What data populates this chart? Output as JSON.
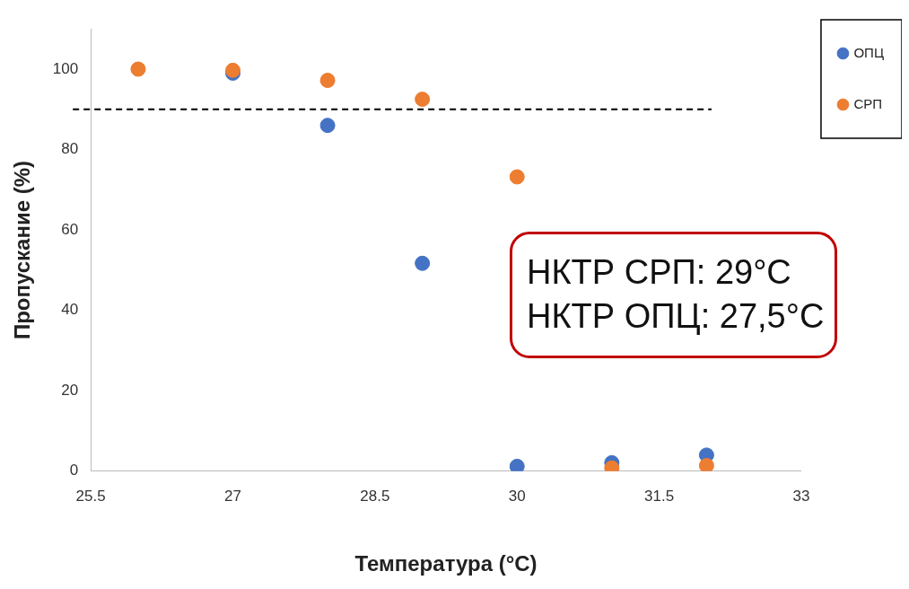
{
  "chart_data": {
    "type": "scatter",
    "xlabel": "Температура (°C)",
    "ylabel": "Пропускание (%)",
    "xlim": [
      25.5,
      33
    ],
    "xticks": [
      25.5,
      27,
      28.5,
      30,
      31.5,
      33
    ],
    "ylim": [
      0,
      110
    ],
    "yticks": [
      0,
      20,
      40,
      60,
      80,
      100
    ],
    "x": [
      26,
      27,
      28,
      29,
      30,
      31,
      32
    ],
    "series": [
      {
        "name": "ОПЦ",
        "color": "#4472c4",
        "values": [
          null,
          99,
          86,
          51.7,
          1.2,
          2.1,
          4
        ]
      },
      {
        "name": "СРП",
        "color": "#ed7d31",
        "values": [
          100,
          99.7,
          97.2,
          92.5,
          73.2,
          0.8,
          1.4
        ]
      }
    ],
    "ref_lines": [
      {
        "axis": "y",
        "value": 90,
        "color": "#000000",
        "line_style": "dashed"
      }
    ],
    "annotations": [
      "НКТР СРП: 29°C",
      "НКТР ОПЦ: 27,5°C"
    ],
    "grid": false,
    "legend": "top right",
    "marker": "circle"
  }
}
